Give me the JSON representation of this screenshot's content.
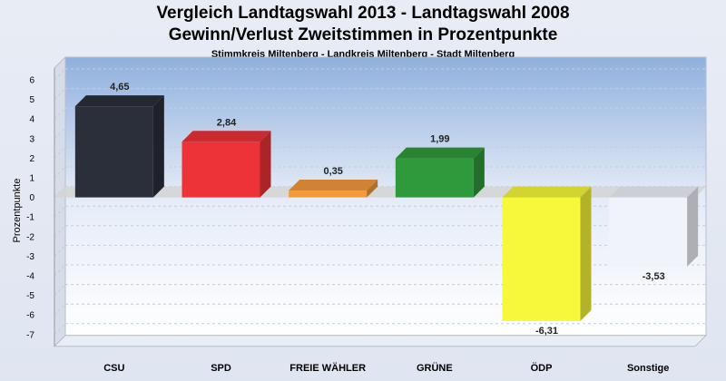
{
  "chart_data": {
    "type": "bar",
    "title": "Vergleich Landtagswahl 2013 - Landtagswahl 2008",
    "subtitle": "Gewinn/Verlust Zweitstimmen in Prozentpunkte",
    "subsubtitle": "Stimmkreis Miltenberg - Landkreis Miltenberg - Stadt Miltenberg",
    "ylabel": "Prozentpunkte",
    "xlabel": "",
    "ylim": [
      -7.6,
      6.6
    ],
    "yticks": [
      "6",
      "5",
      "4",
      "3",
      "2",
      "1",
      "0",
      "-1",
      "-2",
      "-3",
      "-4",
      "-5",
      "-6",
      "-7"
    ],
    "categories": [
      "CSU",
      "SPD",
      "FREIE WÄHLER",
      "GRÜNE",
      "ÖDP",
      "Sonstige"
    ],
    "values": [
      4.65,
      2.84,
      0.35,
      1.99,
      -6.31,
      -3.53
    ],
    "value_labels": [
      "4,65",
      "2,84",
      "0,35",
      "1,99",
      "-6,31",
      "-3,53"
    ],
    "colors": [
      "#2b2f3a",
      "#ee3338",
      "#f59a3c",
      "#2f9a3b",
      "#f8f83a",
      "#f0f3fa"
    ],
    "grid": true,
    "legend": "none"
  }
}
